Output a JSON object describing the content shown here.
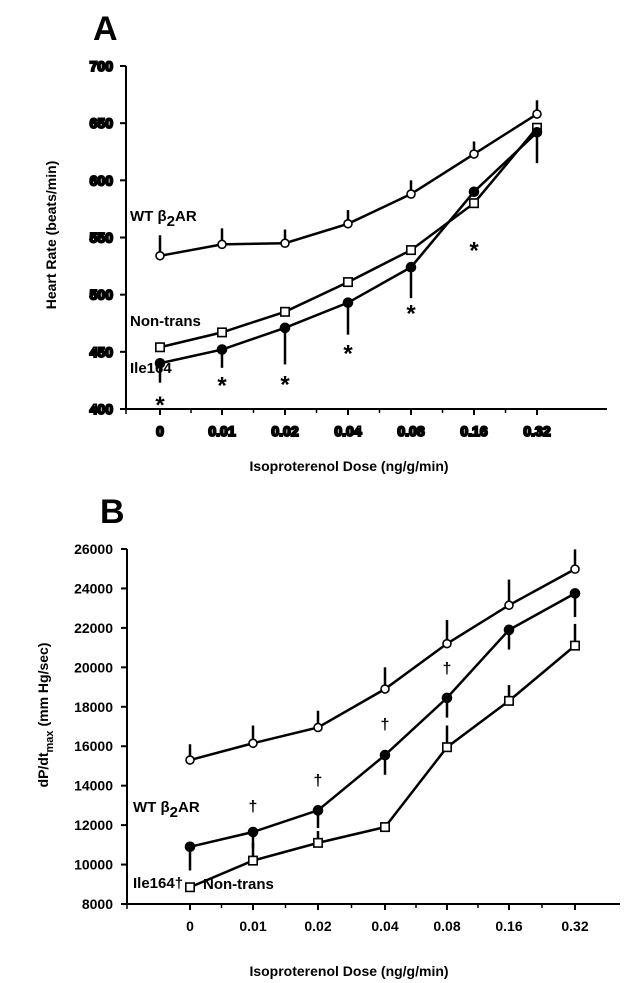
{
  "chart_data": [
    {
      "panel": "A",
      "type": "line",
      "categories": [
        "0",
        "0.01",
        "0.02",
        "0.04",
        "0.08",
        "0.16",
        "0.32"
      ],
      "xlabel": "Isoproterenol  Dose (ng/g/min)",
      "ylabel": "Heart Rate (beats/min)",
      "ylim": [
        400,
        700
      ],
      "yticks": [
        400,
        450,
        500,
        550,
        600,
        650,
        700
      ],
      "grid": false,
      "series": [
        {
          "name": "WT β2AR",
          "marker": "open-circle",
          "values": [
            534,
            544,
            545,
            562,
            588,
            623,
            658
          ],
          "err": [
            18,
            14,
            12,
            12,
            12,
            11,
            12
          ]
        },
        {
          "name": "Non-trans",
          "marker": "open-square",
          "values": [
            454,
            467,
            485,
            511,
            539,
            580,
            646
          ],
          "err": [
            0,
            0,
            0,
            0,
            0,
            0,
            0
          ]
        },
        {
          "name": "Ile164",
          "marker": "filled-circle",
          "values": [
            440,
            452,
            471,
            493,
            524,
            590,
            642
          ],
          "err": [
            17,
            16,
            32,
            28,
            27,
            0,
            27
          ]
        }
      ],
      "annotations": [
        {
          "text": "*",
          "category": "0",
          "value": 407
        },
        {
          "text": "*",
          "category": "0.01",
          "value": 424
        },
        {
          "text": "*",
          "category": "0.02",
          "value": 425
        },
        {
          "text": "*",
          "category": "0.04",
          "value": 452
        },
        {
          "text": "*",
          "category": "0.08",
          "value": 487
        },
        {
          "text": "*",
          "category": "0.16",
          "value": 542
        }
      ]
    },
    {
      "panel": "B",
      "type": "line",
      "categories": [
        "0",
        "0.01",
        "0.02",
        "0.04",
        "0.08",
        "0.16",
        "0.32"
      ],
      "xlabel": "Isoproterenol  Dose (ng/g/min)",
      "ylabel": "dP/dt",
      "ylabel_sub": "max",
      "ylabel_unit": "(mm Hg/sec)",
      "ylim": [
        8000,
        26000
      ],
      "yticks": [
        8000,
        10000,
        12000,
        14000,
        16000,
        18000,
        20000,
        22000,
        24000,
        26000
      ],
      "grid": false,
      "series": [
        {
          "name": "WT β2AR",
          "marker": "open-circle",
          "values": [
            15300,
            16150,
            16950,
            18900,
            21200,
            23150,
            24980
          ],
          "err": [
            800,
            900,
            850,
            1100,
            1200,
            1300,
            1000
          ]
        },
        {
          "name": "Ile164†",
          "marker": "filled-circle",
          "values": [
            10900,
            11650,
            12750,
            15550,
            18450,
            21900,
            23750
          ],
          "err": [
            1200,
            800,
            900,
            1000,
            1000,
            1000,
            1200
          ]
        },
        {
          "name": "Non-trans",
          "marker": "open-square",
          "values": [
            8850,
            10200,
            11100,
            11900,
            15950,
            18300,
            21100
          ],
          "err": [
            0,
            900,
            600,
            0,
            1100,
            800,
            1100
          ]
        }
      ],
      "annotations": [
        {
          "text": "†",
          "category": "0.01",
          "value": 12700
        },
        {
          "text": "†",
          "category": "0.02",
          "value": 14000
        },
        {
          "text": "†",
          "category": "0.04",
          "value": 16850
        },
        {
          "text": "†",
          "category": "0.08",
          "value": 19700
        }
      ]
    }
  ]
}
